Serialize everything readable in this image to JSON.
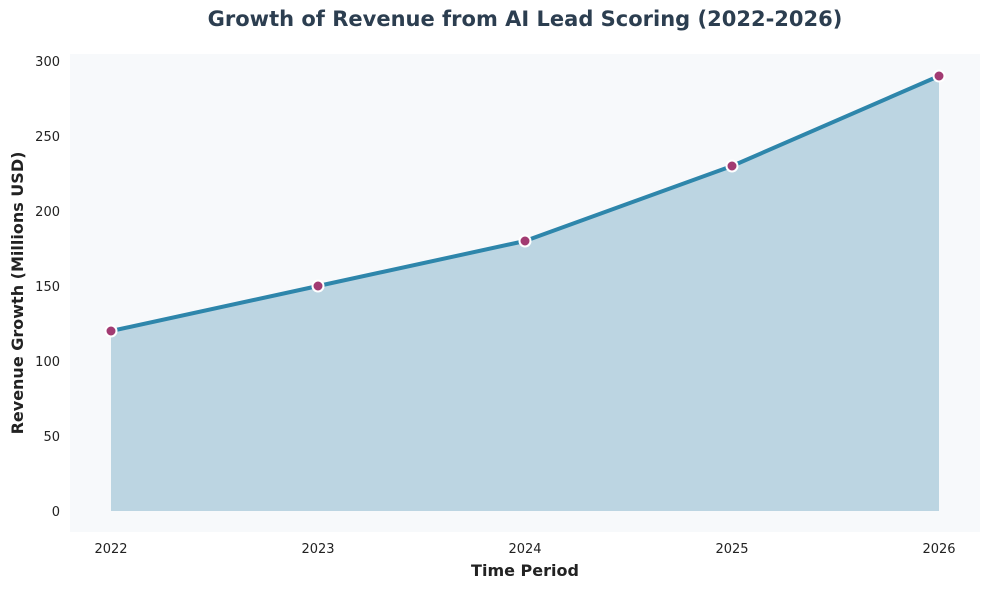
{
  "chart_data": {
    "type": "area",
    "title": "Growth of Revenue from AI Lead Scoring (2022-2026)",
    "xlabel": "Time Period",
    "ylabel": "Revenue Growth (Millions USD)",
    "categories": [
      "2022",
      "2023",
      "2024",
      "2025",
      "2026"
    ],
    "series": [
      {
        "name": "Revenue Growth",
        "values": [
          120,
          150,
          180,
          230,
          290
        ]
      }
    ],
    "ylim": [
      -15,
      305
    ],
    "yticks": [
      0,
      50,
      100,
      150,
      200,
      250,
      300
    ],
    "ytick_labels": [
      "0",
      "50",
      "100",
      "150",
      "200",
      "250",
      "300"
    ],
    "grid": false,
    "legend": "none"
  },
  "colors": {
    "line": "#2e86ab",
    "area_fill": "#bcd5e2",
    "marker": "#a23b72",
    "marker_edge": "#ffffff",
    "plot_background": "#f7f9fb",
    "title": "#2c3e50"
  }
}
